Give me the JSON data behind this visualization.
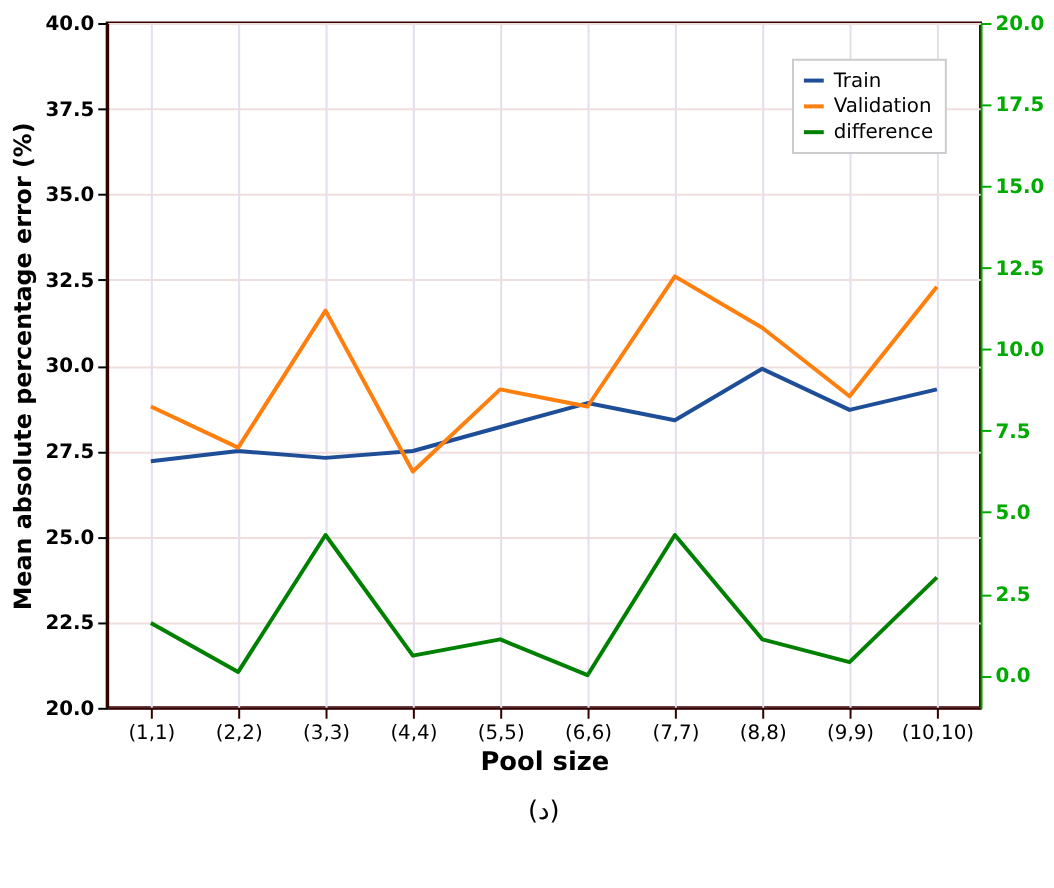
{
  "chart_data": {
    "type": "line",
    "xlabel": "Pool size",
    "ylabel": "Mean absolute percentage error (%)",
    "categories": [
      "(1,1)",
      "(2,2)",
      "(3,3)",
      "(4,4)",
      "(5,5)",
      "(6,6)",
      "(7,7)",
      "(8,8)",
      "(9,9)",
      "(10,10)"
    ],
    "series": [
      {
        "name": "Train",
        "color": "#1f4e99",
        "values": [
          27.2,
          27.5,
          27.3,
          27.5,
          28.2,
          28.9,
          28.4,
          29.9,
          28.7,
          29.3
        ]
      },
      {
        "name": "Validation",
        "color": "#ff7f0e",
        "values": [
          28.8,
          27.6,
          31.6,
          26.9,
          29.3,
          28.8,
          32.6,
          31.1,
          29.1,
          32.3
        ]
      },
      {
        "name": "difference",
        "color": "#008000",
        "axis": "y2",
        "values": [
          1.6,
          0.1,
          4.3,
          0.6,
          1.1,
          0.0,
          4.3,
          1.1,
          0.4,
          3.0
        ]
      }
    ],
    "ylim": [
      20,
      40
    ],
    "yticks": [
      {
        "value": 20,
        "label": "20.0"
      },
      22.5,
      {
        "value": 25,
        "label": "25.0"
      },
      27.5,
      {
        "value": 30,
        "label": "30.0"
      },
      32.5,
      {
        "value": 35,
        "label": "35.0"
      },
      37.5,
      {
        "value": 40,
        "label": "40.0"
      }
    ],
    "y2lim": [
      -1,
      20
    ],
    "y2ticks": [
      {
        "value": 0,
        "label": "0.0"
      },
      2.5,
      {
        "value": 5,
        "label": "5.0"
      },
      7.5,
      {
        "value": 10,
        "label": "10.0"
      },
      12.5,
      {
        "value": 15,
        "label": "15.0"
      },
      17.5,
      {
        "value": 20,
        "label": "20.0"
      }
    ],
    "grid": true,
    "legend": "top right",
    "marker": "none",
    "line_style": "solid",
    "annotations": [
      "(د)"
    ]
  }
}
